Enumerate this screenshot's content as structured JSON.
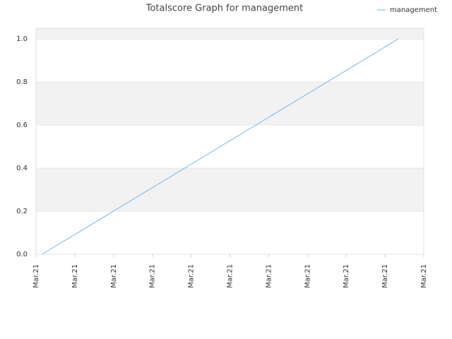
{
  "chart_data": {
    "type": "line",
    "title": "Totalscore Graph for management",
    "x": [
      0.16,
      9.34
    ],
    "series": [
      {
        "name": "management",
        "color": "#7cb5ec",
        "values": [
          0,
          1
        ]
      }
    ],
    "xlim": [
      0,
      10
    ],
    "xticks": [
      {
        "value": 0,
        "label": "Mar.21"
      },
      {
        "value": 1,
        "label": "Mar.21"
      },
      {
        "value": 2,
        "label": "Mar.21"
      },
      {
        "value": 3,
        "label": "Mar.21"
      },
      {
        "value": 4,
        "label": "Mar.21"
      },
      {
        "value": 5,
        "label": "Mar.21"
      },
      {
        "value": 6,
        "label": "Mar.21"
      },
      {
        "value": 7,
        "label": "Mar.21"
      },
      {
        "value": 8,
        "label": "Mar.21"
      },
      {
        "value": 9,
        "label": "Mar.21"
      },
      {
        "value": 10,
        "label": "Mar.21"
      }
    ],
    "ylim": [
      0,
      1.05
    ],
    "yticks": [
      {
        "value": 0,
        "label": "0.0"
      },
      {
        "value": 0.2,
        "label": "0.2"
      },
      {
        "value": 0.4,
        "label": "0.4"
      },
      {
        "value": 0.6,
        "label": "0.6"
      },
      {
        "value": 0.8,
        "label": "0.8"
      },
      {
        "value": 1,
        "label": "1.0"
      }
    ],
    "grid": true,
    "legend": "top-right"
  }
}
